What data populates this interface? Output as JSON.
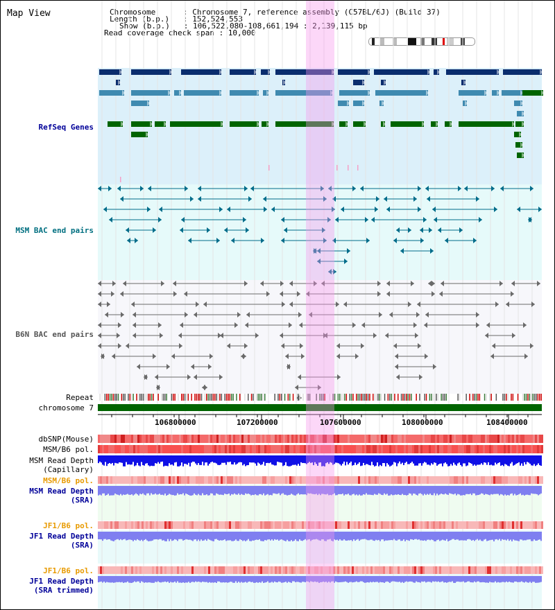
{
  "header": {
    "view_title": "Map View",
    "lines": [
      "Chromosome      : Chromosome 7, reference assembly (C57BL/6J) (Build 37)",
      "Length (b.p.)   : 152,524,553",
      "Show (b.p.)   : 106,522,080-108,661,194 : 2,139,115 bp",
      "Read coverage check span : 10,000"
    ]
  },
  "tracks": {
    "refseq": "RefSeq Genes",
    "msm_bac": "MSM BAC end pairs",
    "b6n_bac": "B6N BAC end pairs",
    "repeat": "Repeat",
    "chromosome": "chromosome 7",
    "dbsnp": "dbSNP(Mouse)",
    "msm_b6_pol_1": "MSM/B6 pol.",
    "msm_depth_cap_1": "MSM Read Depth",
    "msm_depth_cap_2": "(Capillary)",
    "msm_b6_pol_2": "MSM/B6 pol.",
    "msm_depth_sra_1": "MSM Read Depth",
    "msm_depth_sra_2": "(SRA)",
    "jf1_b6_pol_1": "JF1/B6 pol.",
    "jf1_depth_sra_1": "JF1 Read Depth",
    "jf1_depth_sra_2": "(SRA)",
    "jf1_b6_pol_2": "JF1/B6 pol.",
    "jf1_depth_trim_1": "JF1 Read Depth",
    "jf1_depth_trim_2": "(SRA trimmed)"
  },
  "axis": {
    "ticks": [
      "106800000",
      "107200000",
      "107600000",
      "108000000",
      "108400000"
    ]
  },
  "colors": {
    "refseq_dark": "#0a2d6e",
    "refseq_mid": "#3f8ab0",
    "refseq_green": "#006400",
    "bac_teal": "#006c8a",
    "bac_gray": "#6a6a6a",
    "chromosome_green": "#006400",
    "pol_red": "#f24040",
    "depth_blue": "#1010e6",
    "depth_light": "#7f7ff0",
    "label_navy": "#000099",
    "label_teal": "#006f80",
    "label_orange": "#e89a00",
    "highlight": "#f7b4ee"
  }
}
